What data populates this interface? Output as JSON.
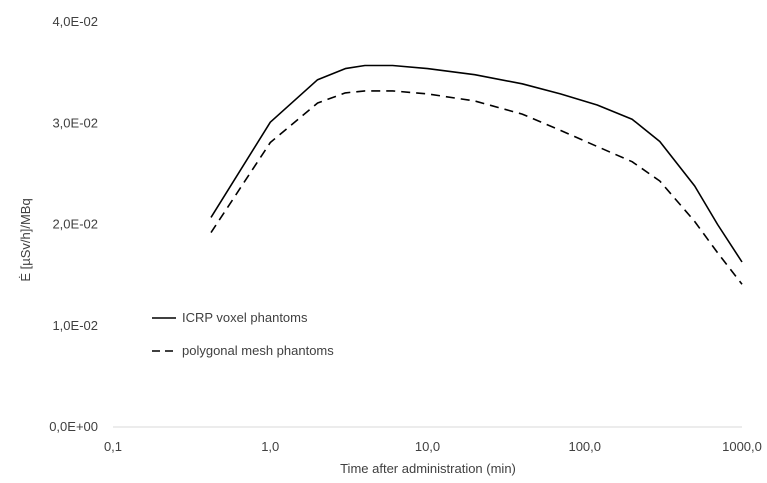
{
  "chart_data": {
    "type": "line",
    "title": "",
    "xlabel": "Time after administration (min)",
    "ylabel": "Ė [µSv/h]/MBq",
    "x_scale": "log",
    "xlim": [
      0.1,
      1000
    ],
    "ylim": [
      0,
      0.04
    ],
    "x_ticks": [
      0.1,
      1,
      10,
      100,
      1000
    ],
    "x_tick_labels": [
      "0,1",
      "1,0",
      "10,0",
      "100,0",
      "1000,0"
    ],
    "y_ticks": [
      0,
      0.01,
      0.02,
      0.03,
      0.04
    ],
    "y_tick_labels": [
      "0,0E+00",
      "1,0E-02",
      "2,0E-02",
      "3,0E-02",
      "4,0E-02"
    ],
    "grid": false,
    "legend_position": "lower-left",
    "series": [
      {
        "name": "ICRP voxel phantoms",
        "style": "solid",
        "color": "#000000",
        "x": [
          0.42,
          1,
          2,
          3,
          4,
          6,
          10,
          20,
          40,
          70,
          120,
          200,
          300,
          500,
          700,
          1000
        ],
        "y": [
          0.0207,
          0.0301,
          0.0343,
          0.0354,
          0.0357,
          0.0357,
          0.0354,
          0.0348,
          0.0339,
          0.0329,
          0.0318,
          0.0304,
          0.0282,
          0.0238,
          0.02,
          0.0163
        ]
      },
      {
        "name": "polygonal mesh phantoms",
        "style": "dashed",
        "color": "#000000",
        "x": [
          0.42,
          1,
          2,
          3,
          4,
          6,
          10,
          20,
          40,
          70,
          120,
          200,
          300,
          500,
          700,
          1000
        ],
        "y": [
          0.0192,
          0.0281,
          0.032,
          0.033,
          0.0332,
          0.0332,
          0.0329,
          0.0322,
          0.0309,
          0.0293,
          0.0277,
          0.0262,
          0.0243,
          0.0203,
          0.0172,
          0.0141
        ]
      }
    ]
  }
}
